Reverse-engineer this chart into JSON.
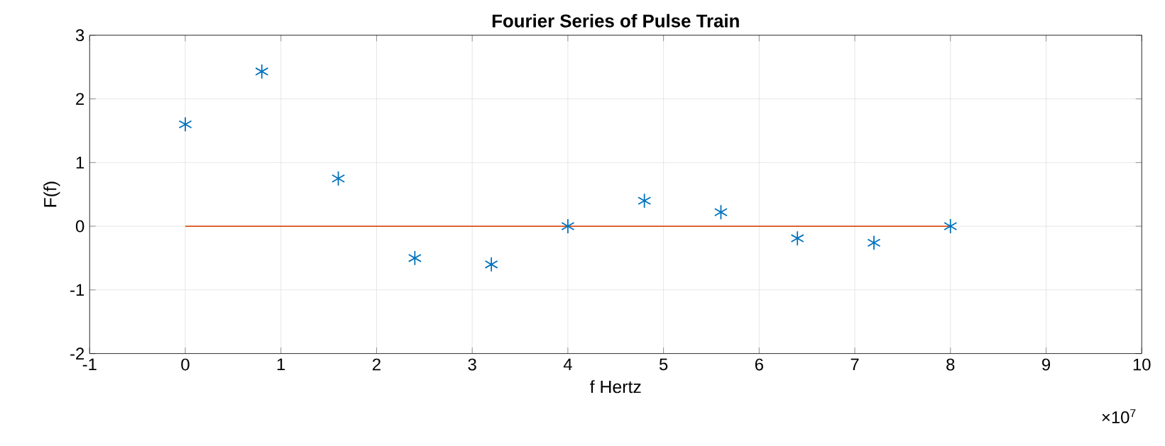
{
  "chart_data": {
    "type": "scatter",
    "title": "Fourier Series of Pulse Train",
    "xlabel": "f Hertz",
    "ylabel": "F(f)",
    "annotations": [
      "×10$^{7}$"
    ],
    "series": [
      {
        "color": "#0072bd",
        "marker": "cross",
        "x": [
          0,
          0.8,
          1.6,
          2.4,
          3.2,
          4,
          4.8,
          5.6,
          6.4,
          7.2,
          8
        ],
        "values": [
          1.6,
          2.43,
          0.75,
          -0.5,
          -0.6,
          0,
          0.4,
          0.22,
          -0.19,
          -0.26,
          0
        ]
      },
      {
        "type": "line",
        "color": "#d95319",
        "marker": "none",
        "x": [
          0,
          8
        ],
        "values": [
          0,
          0
        ]
      }
    ],
    "xlim": [
      -1,
      10
    ],
    "xticks": [
      -1,
      0,
      1,
      2,
      3,
      4,
      5,
      6,
      7,
      8,
      9,
      10
    ],
    "ylim": [
      -2,
      3
    ],
    "yticks": [
      -2,
      -1,
      0,
      1,
      2,
      3
    ],
    "grid": true
  }
}
